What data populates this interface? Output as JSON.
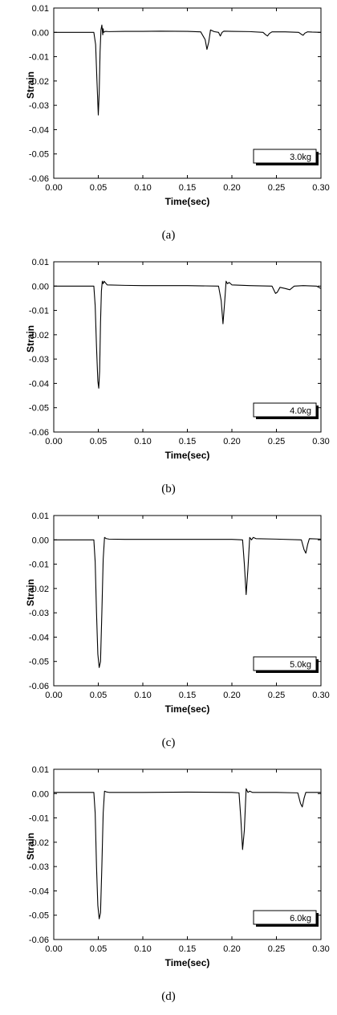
{
  "chart_data": [
    {
      "type": "line",
      "panel": "(a)",
      "xlabel": "Time(sec)",
      "ylabel": "Strain",
      "xlim": [
        0.0,
        0.3
      ],
      "ylim": [
        -0.06,
        0.01
      ],
      "xticks": [
        "0.00",
        "0.05",
        "0.10",
        "0.15",
        "0.20",
        "0.25",
        "0.30"
      ],
      "yticks": [
        "0.01",
        "0.00",
        "-0.01",
        "-0.02",
        "-0.03",
        "-0.04",
        "-0.05",
        "-0.06"
      ],
      "legend": "3.0kg",
      "legend_position": "bottom-right",
      "x": [
        0.0,
        0.045,
        0.047,
        0.0485,
        0.05,
        0.051,
        0.052,
        0.053,
        0.054,
        0.055,
        0.0555,
        0.056,
        0.058,
        0.062,
        0.08,
        0.1,
        0.12,
        0.15,
        0.165,
        0.17,
        0.172,
        0.174,
        0.176,
        0.18,
        0.185,
        0.187,
        0.189,
        0.191,
        0.2,
        0.22,
        0.235,
        0.238,
        0.24,
        0.242,
        0.245,
        0.26,
        0.275,
        0.278,
        0.28,
        0.282,
        0.285,
        0.29,
        0.3
      ],
      "y": [
        0.0,
        0.0,
        -0.005,
        -0.02,
        -0.034,
        -0.025,
        -0.008,
        0.001,
        0.003,
        -0.001,
        0.0015,
        0.0,
        0.0004,
        0.0003,
        0.0004,
        0.0004,
        0.0005,
        0.0004,
        0.0002,
        -0.003,
        -0.007,
        -0.004,
        0.001,
        0.0003,
        0.0,
        -0.0015,
        0.0,
        0.0005,
        0.0004,
        0.0003,
        0.0,
        -0.001,
        -0.0015,
        -0.0005,
        0.0002,
        0.0002,
        0.0,
        -0.0008,
        -0.0012,
        -0.0003,
        0.0002,
        0.0001,
        0.0
      ]
    },
    {
      "type": "line",
      "panel": "(b)",
      "xlabel": "Time(sec)",
      "ylabel": "Strain",
      "xlim": [
        0.0,
        0.3
      ],
      "ylim": [
        -0.06,
        0.01
      ],
      "xticks": [
        "0.00",
        "0.05",
        "0.10",
        "0.15",
        "0.20",
        "0.25",
        "0.30"
      ],
      "yticks": [
        "0.01",
        "0.00",
        "-0.01",
        "-0.02",
        "-0.03",
        "-0.04",
        "-0.05",
        "-0.06"
      ],
      "legend": "4.0kg",
      "legend_position": "bottom-right",
      "x": [
        0.0,
        0.045,
        0.0465,
        0.048,
        0.0495,
        0.0505,
        0.0515,
        0.0525,
        0.0535,
        0.0545,
        0.0555,
        0.0565,
        0.06,
        0.08,
        0.1,
        0.15,
        0.185,
        0.188,
        0.19,
        0.192,
        0.1935,
        0.195,
        0.197,
        0.2,
        0.22,
        0.245,
        0.249,
        0.251,
        0.254,
        0.26,
        0.265,
        0.27,
        0.28,
        0.295,
        0.3
      ],
      "y": [
        0.0,
        0.0,
        -0.008,
        -0.025,
        -0.039,
        -0.042,
        -0.035,
        -0.015,
        -0.002,
        0.002,
        0.001,
        0.002,
        0.0005,
        0.0003,
        0.0002,
        0.0002,
        0.0,
        -0.006,
        -0.0155,
        -0.006,
        0.002,
        0.001,
        0.0015,
        0.0005,
        0.0002,
        0.0,
        -0.003,
        -0.0025,
        -0.0005,
        -0.001,
        -0.0015,
        0.0,
        0.0002,
        0.0,
        -0.001
      ]
    },
    {
      "type": "line",
      "panel": "(c)",
      "xlabel": "Time(sec)",
      "ylabel": "Strain",
      "xlim": [
        0.0,
        0.3
      ],
      "ylim": [
        -0.06,
        0.01
      ],
      "xticks": [
        "0.00",
        "0.05",
        "0.10",
        "0.15",
        "0.20",
        "0.25",
        "0.30"
      ],
      "yticks": [
        "0.01",
        "0.00",
        "-0.01",
        "-0.02",
        "-0.03",
        "-0.04",
        "-0.05",
        "-0.06"
      ],
      "legend": "5.0kg",
      "legend_position": "bottom-right",
      "x": [
        0.0,
        0.045,
        0.0465,
        0.048,
        0.0495,
        0.051,
        0.0525,
        0.054,
        0.0555,
        0.057,
        0.059,
        0.062,
        0.08,
        0.1,
        0.15,
        0.2,
        0.212,
        0.214,
        0.216,
        0.218,
        0.22,
        0.222,
        0.224,
        0.227,
        0.25,
        0.278,
        0.281,
        0.283,
        0.285,
        0.287,
        0.3
      ],
      "y": [
        0.0,
        0.0,
        -0.009,
        -0.03,
        -0.047,
        -0.0525,
        -0.05,
        -0.03,
        -0.008,
        0.001,
        0.0005,
        0.0003,
        0.0002,
        0.0002,
        0.0002,
        0.0002,
        0.0,
        -0.01,
        -0.0225,
        -0.012,
        0.001,
        0.0,
        0.001,
        0.0005,
        0.0003,
        0.0,
        -0.004,
        -0.0055,
        -0.002,
        0.0005,
        0.0003
      ]
    },
    {
      "type": "line",
      "panel": "(d)",
      "xlabel": "Time(sec)",
      "ylabel": "Strain",
      "xlim": [
        0.0,
        0.3
      ],
      "ylim": [
        -0.06,
        0.01
      ],
      "xticks": [
        "0.00",
        "0.05",
        "0.10",
        "0.15",
        "0.20",
        "0.25",
        "0.30"
      ],
      "yticks": [
        "0.01",
        "0.00",
        "-0.01",
        "-0.02",
        "-0.03",
        "-0.04",
        "-0.05",
        "-0.06"
      ],
      "legend": "6.0kg",
      "legend_position": "bottom-right",
      "x": [
        0.0,
        0.045,
        0.0465,
        0.048,
        0.0495,
        0.051,
        0.0525,
        0.054,
        0.0555,
        0.057,
        0.059,
        0.062,
        0.08,
        0.1,
        0.15,
        0.2,
        0.208,
        0.21,
        0.212,
        0.214,
        0.216,
        0.218,
        0.22,
        0.223,
        0.25,
        0.274,
        0.277,
        0.279,
        0.281,
        0.283,
        0.3
      ],
      "y": [
        0.0005,
        0.0005,
        -0.008,
        -0.03,
        -0.046,
        -0.0515,
        -0.049,
        -0.03,
        -0.008,
        0.001,
        0.0007,
        0.0005,
        0.0005,
        0.0005,
        0.0006,
        0.0005,
        0.0003,
        -0.01,
        -0.023,
        -0.015,
        0.002,
        0.0005,
        0.001,
        0.0005,
        0.0005,
        0.0003,
        -0.004,
        -0.0055,
        -0.002,
        0.0005,
        0.0005
      ]
    }
  ]
}
